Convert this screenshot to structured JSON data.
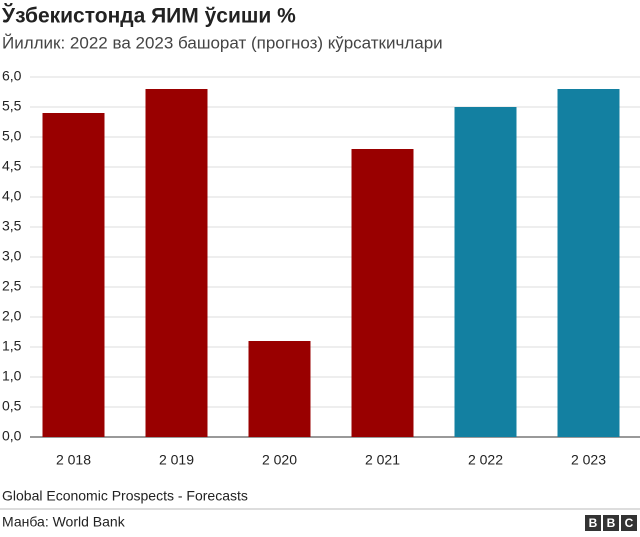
{
  "chart_data": {
    "type": "bar",
    "title": "Ўзбекистонда ЯИМ ўсиши %",
    "subtitle": "Йиллик: 2022 ва 2023 башорат (прогноз) кўрсаткичлари",
    "categories": [
      "2 018",
      "2 019",
      "2 020",
      "2 021",
      "2 022",
      "2 023"
    ],
    "values": [
      5.4,
      5.8,
      1.6,
      4.8,
      5.5,
      5.8
    ],
    "colors": [
      "#990000",
      "#990000",
      "#990000",
      "#990000",
      "#1380a1",
      "#1380a1"
    ],
    "ylim": [
      0,
      6
    ],
    "yticks": [
      {
        "value": 0,
        "label": "0,0"
      },
      {
        "value": 0.5,
        "label": "0,5"
      },
      {
        "value": 1,
        "label": "1,0"
      },
      {
        "value": 1.5,
        "label": "1,5"
      },
      {
        "value": 2,
        "label": "2,0"
      },
      {
        "value": 2.5,
        "label": "2,5"
      },
      {
        "value": 3,
        "label": "3,0"
      },
      {
        "value": 3.5,
        "label": "3,5"
      },
      {
        "value": 4,
        "label": "4,0"
      },
      {
        "value": 4.5,
        "label": "4,5"
      },
      {
        "value": 5,
        "label": "5,0"
      },
      {
        "value": 5.5,
        "label": "5,5"
      },
      {
        "value": 6,
        "label": "6,0"
      }
    ],
    "grid": true,
    "note": "Global Economic Prospects - Forecasts",
    "source": "Манба: World Bank",
    "logo": [
      "B",
      "B",
      "C"
    ]
  }
}
